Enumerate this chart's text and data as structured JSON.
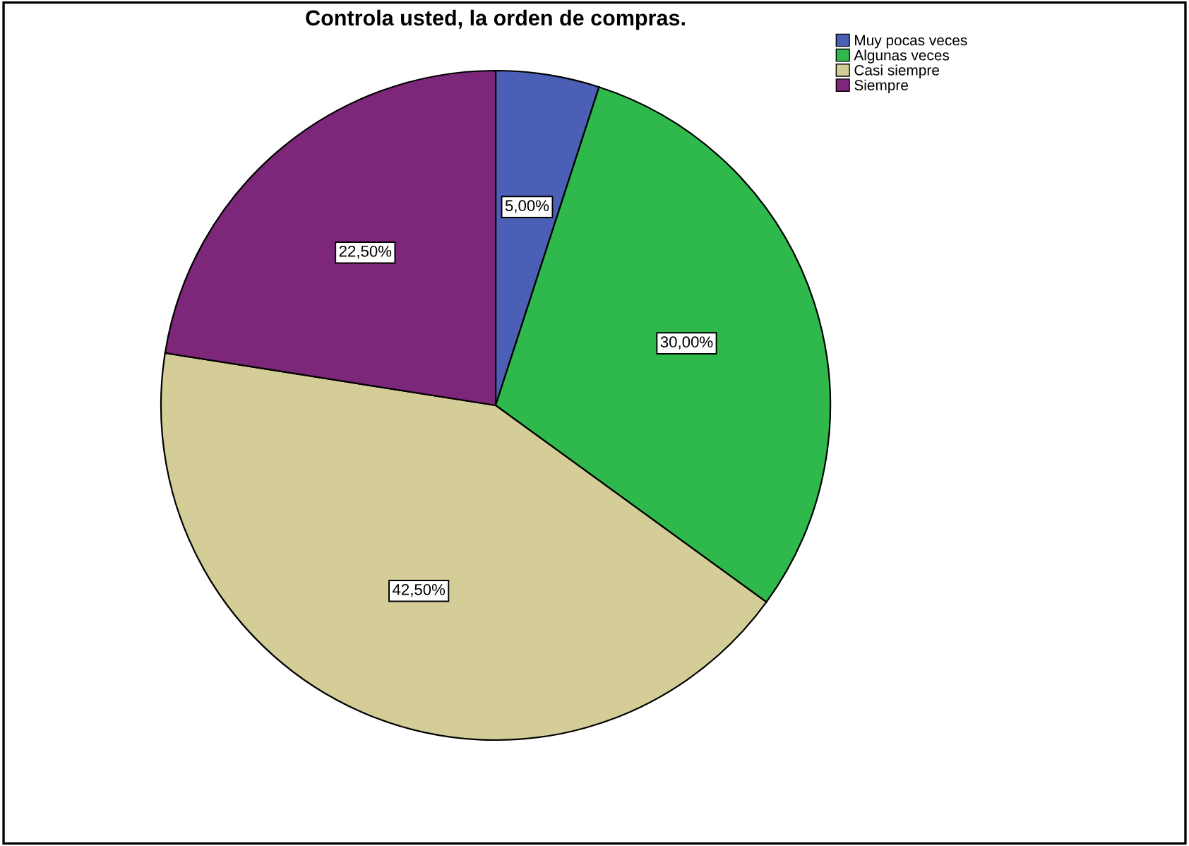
{
  "chart_data": {
    "type": "pie",
    "title": "Controla usted, la orden de compras.",
    "categories": [
      "Muy pocas veces",
      "Algunas veces",
      "Casi siempre",
      "Siempre"
    ],
    "values": [
      5,
      30,
      42.5,
      22.5
    ],
    "value_labels": [
      "5,00%",
      "30,00%",
      "42,50%",
      "22,50%"
    ],
    "colors": [
      "#4a5fb5",
      "#2fb84b",
      "#d4cd97",
      "#7c2779"
    ],
    "legend": "top right"
  }
}
